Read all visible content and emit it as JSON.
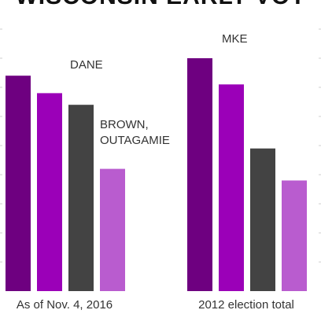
{
  "chart_data": {
    "type": "bar",
    "title": "WISCONSIN EARLY VOT",
    "xlabel": "",
    "ylabel": "",
    "categories": [
      "As of Nov. 4, 2016",
      "2012 election total"
    ],
    "series": [
      {
        "values": [
          74,
          80
        ],
        "color": "#6e0080"
      },
      {
        "values": [
          68,
          71
        ],
        "color": "#9b00b8"
      },
      {
        "values": [
          64,
          49
        ],
        "color": "#434343"
      },
      {
        "values": [
          42,
          38
        ],
        "color": "#b95ccf"
      }
    ],
    "annotations": [
      {
        "text": "MKE"
      },
      {
        "text": "DANE"
      },
      {
        "text": "BROWN,"
      },
      {
        "text": "OUTAGAMIE"
      }
    ],
    "ylim": [
      0,
      100
    ],
    "grid": true,
    "legend": "none"
  }
}
